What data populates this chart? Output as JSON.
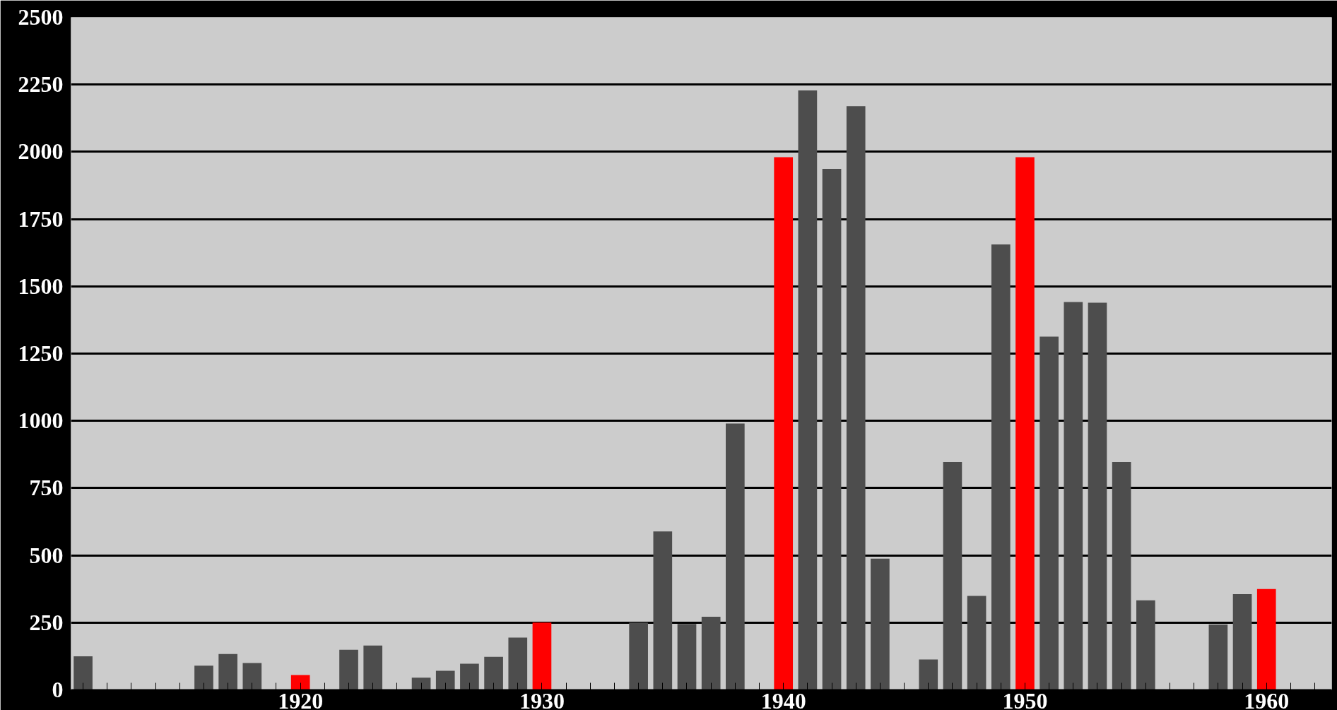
{
  "chart_data": {
    "type": "bar",
    "x": [
      1911,
      1912,
      1913,
      1914,
      1915,
      1916,
      1917,
      1918,
      1919,
      1920,
      1921,
      1922,
      1923,
      1924,
      1925,
      1926,
      1927,
      1928,
      1929,
      1930,
      1931,
      1932,
      1933,
      1934,
      1935,
      1936,
      1937,
      1938,
      1939,
      1940,
      1941,
      1942,
      1943,
      1944,
      1945,
      1946,
      1947,
      1948,
      1949,
      1950,
      1951,
      1952,
      1953,
      1954,
      1955,
      1956,
      1957,
      1958,
      1959,
      1960
    ],
    "values": [
      125,
      null,
      null,
      null,
      null,
      90,
      133,
      100,
      null,
      55,
      null,
      149,
      165,
      null,
      45,
      71,
      97,
      123,
      194,
      250,
      null,
      null,
      null,
      250,
      589,
      245,
      272,
      990,
      null,
      1980,
      2228,
      1937,
      2170,
      488,
      null,
      113,
      847,
      349,
      1656,
      1980,
      1313,
      1442,
      1439,
      847,
      333,
      null,
      null,
      243,
      356,
      375
    ],
    "colors": [
      "#4d4d4d",
      "#4d4d4d",
      "#4d4d4d",
      "#4d4d4d",
      "#4d4d4d",
      "#4d4d4d",
      "#4d4d4d",
      "#4d4d4d",
      "#4d4d4d",
      "#ff0000",
      "#4d4d4d",
      "#4d4d4d",
      "#4d4d4d",
      "#4d4d4d",
      "#4d4d4d",
      "#4d4d4d",
      "#4d4d4d",
      "#4d4d4d",
      "#4d4d4d",
      "#ff0000",
      "#4d4d4d",
      "#4d4d4d",
      "#4d4d4d",
      "#4d4d4d",
      "#4d4d4d",
      "#4d4d4d",
      "#4d4d4d",
      "#4d4d4d",
      "#4d4d4d",
      "#ff0000",
      "#4d4d4d",
      "#4d4d4d",
      "#4d4d4d",
      "#4d4d4d",
      "#4d4d4d",
      "#4d4d4d",
      "#4d4d4d",
      "#4d4d4d",
      "#4d4d4d",
      "#ff0000",
      "#4d4d4d",
      "#4d4d4d",
      "#4d4d4d",
      "#4d4d4d",
      "#4d4d4d",
      "#4d4d4d",
      "#4d4d4d",
      "#4d4d4d",
      "#4d4d4d",
      "#ff0000"
    ],
    "xlim": [
      1910.5,
      1962.7
    ],
    "xticks": [
      {
        "value": 1911,
        "label": null
      },
      {
        "value": 1912,
        "label": null
      },
      {
        "value": 1913,
        "label": null
      },
      {
        "value": 1914,
        "label": null
      },
      {
        "value": 1915,
        "label": null
      },
      {
        "value": 1916,
        "label": null
      },
      {
        "value": 1917,
        "label": null
      },
      {
        "value": 1918,
        "label": null
      },
      {
        "value": 1919,
        "label": null
      },
      1920,
      {
        "value": 1921,
        "label": null
      },
      {
        "value": 1922,
        "label": null
      },
      {
        "value": 1923,
        "label": null
      },
      {
        "value": 1924,
        "label": null
      },
      {
        "value": 1925,
        "label": null
      },
      {
        "value": 1926,
        "label": null
      },
      {
        "value": 1927,
        "label": null
      },
      {
        "value": 1928,
        "label": null
      },
      {
        "value": 1929,
        "label": null
      },
      1930,
      {
        "value": 1931,
        "label": null
      },
      {
        "value": 1932,
        "label": null
      },
      {
        "value": 1933,
        "label": null
      },
      {
        "value": 1934,
        "label": null
      },
      {
        "value": 1935,
        "label": null
      },
      {
        "value": 1936,
        "label": null
      },
      {
        "value": 1937,
        "label": null
      },
      {
        "value": 1938,
        "label": null
      },
      {
        "value": 1939,
        "label": null
      },
      1940,
      {
        "value": 1941,
        "label": null
      },
      {
        "value": 1942,
        "label": null
      },
      {
        "value": 1943,
        "label": null
      },
      {
        "value": 1944,
        "label": null
      },
      {
        "value": 1945,
        "label": null
      },
      {
        "value": 1946,
        "label": null
      },
      {
        "value": 1947,
        "label": null
      },
      {
        "value": 1948,
        "label": null
      },
      {
        "value": 1949,
        "label": null
      },
      1950,
      {
        "value": 1951,
        "label": null
      },
      {
        "value": 1952,
        "label": null
      },
      {
        "value": 1953,
        "label": null
      },
      {
        "value": 1954,
        "label": null
      },
      {
        "value": 1955,
        "label": null
      },
      {
        "value": 1956,
        "label": null
      },
      {
        "value": 1957,
        "label": null
      },
      {
        "value": 1958,
        "label": null
      },
      {
        "value": 1959,
        "label": null
      },
      1960,
      {
        "value": 1961,
        "label": null
      },
      {
        "value": 1962,
        "label": null
      }
    ],
    "ylim": [
      0,
      2500
    ],
    "yticks": [
      0,
      250,
      500,
      750,
      1000,
      1250,
      1500,
      1750,
      2000,
      2250,
      2500
    ],
    "grid": "y"
  }
}
